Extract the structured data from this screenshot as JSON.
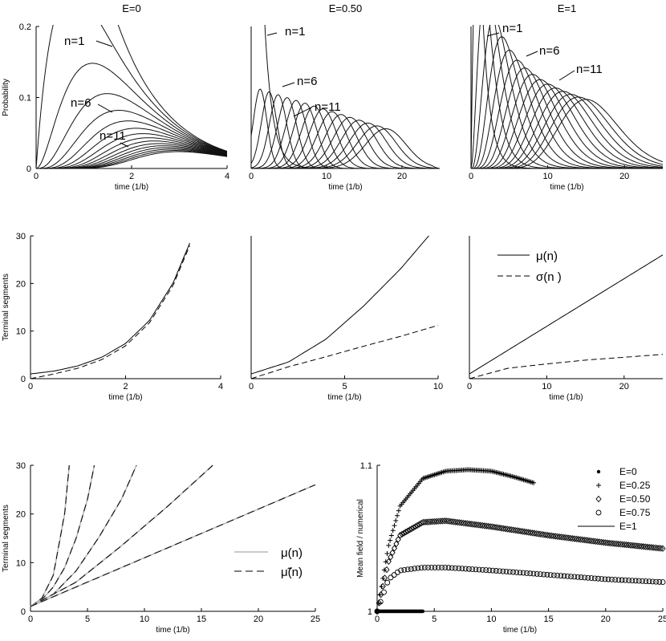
{
  "chart_data": [
    {
      "id": "a1",
      "type": "line",
      "title": "E=0",
      "xlabel": "time (1/b)",
      "ylabel": "Probability",
      "xlim": [
        0,
        4
      ],
      "ylim": [
        0,
        0.2
      ],
      "xticks": [
        "0",
        "2",
        "4"
      ],
      "yticks": [
        "0",
        "0.1",
        "0.2"
      ],
      "curve_model": "uniform-growth segment-count distribution, n = 1..16",
      "annotations": [
        "n=1",
        "n=6",
        "n=11"
      ]
    },
    {
      "id": "a2",
      "type": "line",
      "title": "E=0.50",
      "xlabel": "time (1/b)",
      "ylabel": "",
      "xlim": [
        0,
        25
      ],
      "ylim": [
        0,
        0.2
      ],
      "xticks": [
        "0",
        "10",
        "20"
      ],
      "yticks": [],
      "curve_model": "segment-count distribution, n = 1..16",
      "annotations": [
        "n=1",
        "n=6",
        "n=11"
      ]
    },
    {
      "id": "a3",
      "type": "line",
      "title": "E=1",
      "xlabel": "time (1/b)",
      "ylabel": "",
      "xlim": [
        0,
        25
      ],
      "ylim": [
        0,
        0.2
      ],
      "xticks": [
        "0",
        "10",
        "20"
      ],
      "yticks": [],
      "curve_model": "segment-count distribution, n = 1..16",
      "annotations": [
        "n=1",
        "n=6",
        "n=11"
      ]
    },
    {
      "id": "b1",
      "type": "line",
      "title": "",
      "xlabel": "time (1/b)",
      "ylabel": "Terminal segments",
      "xlim": [
        0,
        4
      ],
      "ylim": [
        0,
        30
      ],
      "xticks": [
        "0",
        "2",
        "4"
      ],
      "yticks": [
        "0",
        "10",
        "20",
        "30"
      ],
      "series": [
        {
          "name": "μ(n)",
          "style": "solid",
          "x": [
            0,
            0.5,
            1,
            1.5,
            2,
            2.5,
            3,
            3.35
          ],
          "y": [
            1.0,
            1.6,
            2.7,
            4.5,
            7.4,
            12.2,
            20.1,
            28.5
          ]
        },
        {
          "name": "σ(n )",
          "style": "dashed",
          "x": [
            0,
            0.5,
            1,
            1.5,
            2,
            2.5,
            3,
            3.35
          ],
          "y": [
            0.0,
            1.0,
            2.2,
            4.0,
            6.9,
            11.7,
            19.6,
            28.0
          ]
        }
      ]
    },
    {
      "id": "b2",
      "type": "line",
      "title": "",
      "xlabel": "time (1/b)",
      "ylabel": "",
      "xlim": [
        0,
        10
      ],
      "ylim": [
        0,
        30
      ],
      "xticks": [
        "0",
        "5",
        "10"
      ],
      "yticks": [],
      "series": [
        {
          "name": "μ(n)",
          "style": "solid",
          "x": [
            0,
            2,
            4,
            6,
            8,
            9.5
          ],
          "y": [
            1.0,
            3.5,
            8.3,
            15.2,
            23.1,
            30.0
          ]
        },
        {
          "name": "σ(n )",
          "style": "dashed",
          "x": [
            0,
            2,
            4,
            6,
            8,
            10
          ],
          "y": [
            0.0,
            2.5,
            4.6,
            6.8,
            8.9,
            11.2
          ]
        }
      ]
    },
    {
      "id": "b3",
      "type": "line",
      "title": "",
      "xlabel": "time (1/b)",
      "ylabel": "",
      "xlim": [
        0,
        25
      ],
      "ylim": [
        0,
        30
      ],
      "xticks": [
        "0",
        "10",
        "20"
      ],
      "yticks": [],
      "legend": [
        "μ(n)",
        "σ(n )"
      ],
      "series": [
        {
          "name": "μ(n)",
          "style": "solid",
          "x": [
            0,
            25
          ],
          "y": [
            1.0,
            26.0
          ]
        },
        {
          "name": "σ(n )",
          "style": "dashed",
          "x": [
            0,
            5,
            10,
            15,
            20,
            25
          ],
          "y": [
            0.0,
            2.2,
            3.1,
            3.9,
            4.5,
            5.1
          ]
        }
      ]
    },
    {
      "id": "c1",
      "type": "line",
      "title": "",
      "xlabel": "time (1/b)",
      "ylabel": "Terminal segments",
      "xlim": [
        0,
        25
      ],
      "ylim": [
        0,
        30
      ],
      "xticks": [
        "0",
        "5",
        "10",
        "15",
        "20",
        "25"
      ],
      "yticks": [
        "0",
        "10",
        "20",
        "30"
      ],
      "legend": [
        "μ(n)",
        "μ̃(n)"
      ],
      "series": [
        {
          "name": "E=0",
          "x": [
            0,
            1,
            2,
            3,
            3.4
          ],
          "y": [
            1.0,
            2.7,
            7.4,
            20.1,
            30.0
          ]
        },
        {
          "name": "E=0.25",
          "x": [
            0,
            1,
            2,
            3,
            4,
            5,
            5.6
          ],
          "y": [
            1.0,
            2.4,
            5.0,
            9.0,
            15.0,
            23.0,
            30.0
          ]
        },
        {
          "name": "E=0.50",
          "x": [
            0,
            2,
            4,
            6,
            8,
            9.3
          ],
          "y": [
            1.0,
            3.5,
            8.3,
            15.2,
            23.1,
            30.0
          ]
        },
        {
          "name": "E=0.75",
          "x": [
            0,
            4,
            8,
            12,
            16
          ],
          "y": [
            1.0,
            6.0,
            13.5,
            21.5,
            30.0
          ]
        },
        {
          "name": "E=1",
          "x": [
            0,
            25
          ],
          "y": [
            1.0,
            26.0
          ]
        }
      ]
    },
    {
      "id": "c2",
      "type": "scatter",
      "title": "",
      "xlabel": "time (1/b)",
      "ylabel": "Mean field / numerical",
      "xlim": [
        0,
        25
      ],
      "ylim": [
        1.0,
        1.1
      ],
      "xticks": [
        "0",
        "5",
        "10",
        "15",
        "20",
        "25"
      ],
      "yticks": [
        "1",
        "1.1"
      ],
      "legend": [
        "E=0",
        "E=0.25",
        "E=0.50",
        "E=0.75",
        "E=1"
      ],
      "series": [
        {
          "name": "E=0",
          "marker": "dot",
          "x": [
            0,
            1,
            2,
            3,
            4
          ],
          "y": [
            1.0,
            1.0,
            1.0,
            1.0,
            1.0
          ]
        },
        {
          "name": "E=0.25",
          "marker": "plus",
          "x": [
            0,
            1,
            2,
            4,
            6,
            8,
            10,
            12,
            13.7
          ],
          "y": [
            1.0,
            1.045,
            1.072,
            1.091,
            1.096,
            1.097,
            1.096,
            1.092,
            1.088
          ]
        },
        {
          "name": "E=0.50",
          "marker": "diamond",
          "x": [
            0,
            1,
            2,
            4,
            6,
            10,
            15,
            20,
            25
          ],
          "y": [
            1.0,
            1.034,
            1.052,
            1.061,
            1.062,
            1.058,
            1.052,
            1.047,
            1.043
          ]
        },
        {
          "name": "E=0.75",
          "marker": "circle",
          "x": [
            0,
            1,
            2,
            4,
            6,
            10,
            15,
            20,
            25
          ],
          "y": [
            1.0,
            1.022,
            1.028,
            1.03,
            1.03,
            1.028,
            1.025,
            1.022,
            1.02
          ]
        },
        {
          "name": "E=1",
          "marker": "line",
          "x": [
            0,
            25
          ],
          "y": [
            1.0,
            1.0
          ]
        }
      ]
    }
  ]
}
